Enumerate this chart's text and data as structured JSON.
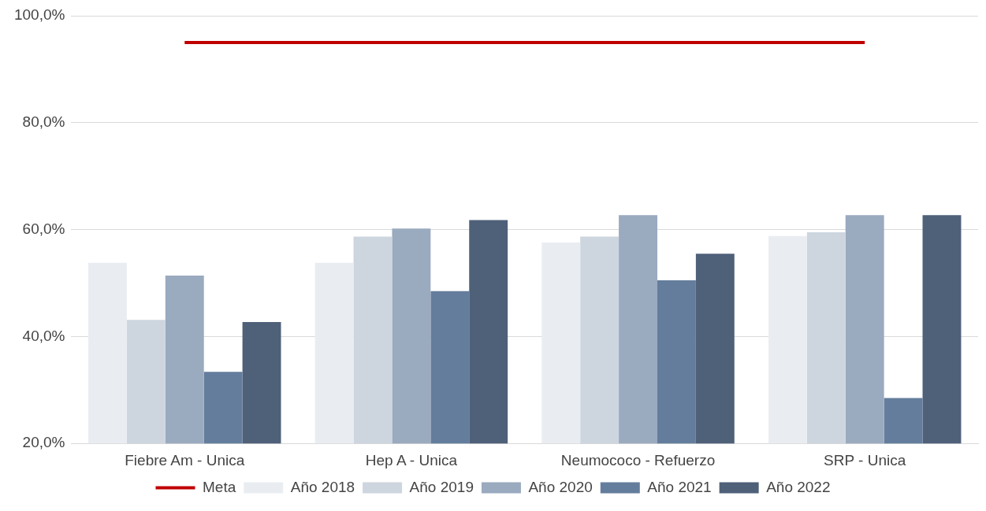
{
  "chart_data": {
    "type": "bar",
    "categories": [
      "Fiebre Am - Unica",
      "Hep A - Unica",
      "Neumococo - Refuerzo",
      "SRP - Unica"
    ],
    "series": [
      {
        "name": "Año 2018",
        "color": "#e9edf2",
        "values": [
          53.8,
          53.8,
          57.6,
          58.8
        ]
      },
      {
        "name": "Año 2019",
        "color": "#cdd5df",
        "values": [
          43.1,
          58.7,
          58.7,
          59.5
        ]
      },
      {
        "name": "Año 2020",
        "color": "#9aaabf",
        "values": [
          51.4,
          60.2,
          62.7,
          62.7
        ]
      },
      {
        "name": "Año 2021",
        "color": "#647d9c",
        "values": [
          33.4,
          48.5,
          50.5,
          28.5
        ]
      },
      {
        "name": "Año 2022",
        "color": "#4f6079",
        "values": [
          42.7,
          61.8,
          55.5,
          62.7
        ]
      },
      {
        "name": "Meta",
        "type": "line",
        "color": "#c00000",
        "values": [
          95,
          95,
          95,
          95
        ]
      }
    ],
    "ylim": [
      20,
      100
    ],
    "yticks": [
      {
        "value": 20,
        "label": "20,0%"
      },
      {
        "value": 40,
        "label": "40,0%"
      },
      {
        "value": 60,
        "label": "60,0%"
      },
      {
        "value": 80,
        "label": "80,0%"
      },
      {
        "value": 100,
        "label": "100,0%"
      }
    ],
    "grid": "y",
    "legend": "bottom",
    "marker": "none"
  }
}
